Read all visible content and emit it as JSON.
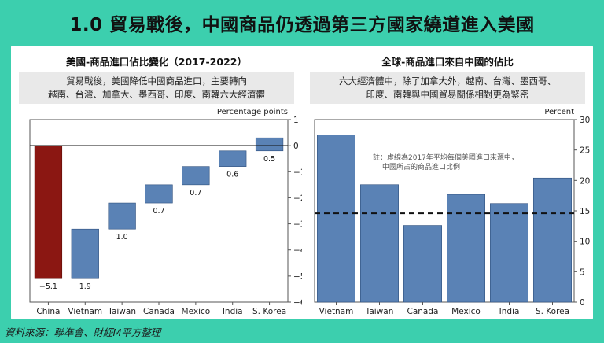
{
  "title": "1.0 貿易戰後，中國商品仍透過第三方國家繞道進入美國",
  "source": "資料來源：聯準會、財經M平方整理",
  "colors": {
    "background": "#3ccfae",
    "bar_blue": "#5a82b5",
    "bar_red": "#8b1712",
    "bar_outline": "#2e4f7d"
  },
  "left_panel": {
    "title": "美國-商品進口佔比變化（2017-2022）",
    "note_line1": "貿易戰後，美國降低中國商品進口，主要轉向",
    "note_line2": "越南、台灣、加拿大、墨西哥、印度、南韓六大經濟體"
  },
  "right_panel": {
    "title": "全球-商品進口來自中國的佔比",
    "note_line1": "六大經濟體中，除了加拿大外，越南、台灣、墨西哥、",
    "note_line2": "印度、南韓與中國貿易關係相對更為緊密"
  },
  "chart_data": [
    {
      "type": "bar",
      "subtype": "waterfall",
      "title": "美國-商品進口佔比變化（2017-2022）",
      "ylabel": "Percentage points",
      "categories": [
        "China",
        "Vietnam",
        "Taiwan",
        "Canada",
        "Mexico",
        "India",
        "S. Korea"
      ],
      "values": [
        -5.1,
        1.9,
        1.0,
        0.7,
        0.7,
        0.6,
        0.5
      ],
      "data_labels": [
        "−5.1",
        "1.9",
        "1.0",
        "0.7",
        "0.7",
        "0.6",
        "0.5"
      ],
      "ylim": [
        -6,
        1
      ],
      "yticks": [
        1,
        0,
        -1,
        -2,
        -3,
        -4,
        -5,
        -6
      ],
      "ytick_labels": [
        "1",
        "0",
        "−1",
        "−2",
        "−3",
        "−4",
        "−5",
        "−6"
      ],
      "y_axis_side": "right",
      "grid": false,
      "bar_colors": [
        "#8b1712",
        "#5a82b5",
        "#5a82b5",
        "#5a82b5",
        "#5a82b5",
        "#5a82b5",
        "#5a82b5"
      ]
    },
    {
      "type": "bar",
      "title": "全球-商品進口來自中國的佔比",
      "ylabel": "Percent",
      "categories": [
        "Vietnam",
        "Taiwan",
        "Canada",
        "Mexico",
        "India",
        "S. Korea"
      ],
      "values": [
        27.5,
        19.3,
        12.6,
        17.7,
        16.2,
        20.4
      ],
      "ylim": [
        0,
        30
      ],
      "yticks": [
        0,
        5,
        10,
        15,
        20,
        25,
        30
      ],
      "ytick_labels": [
        "0",
        "5",
        "10",
        "15",
        "20",
        "25",
        "30"
      ],
      "y_axis_side": "right",
      "grid": false,
      "reference_line": {
        "value": 14.6,
        "style": "dashed",
        "annotation_line1": "註：虛線為2017年平均每個美國進口來源中，",
        "annotation_line2": "中國所占的商品進口比例"
      }
    }
  ]
}
